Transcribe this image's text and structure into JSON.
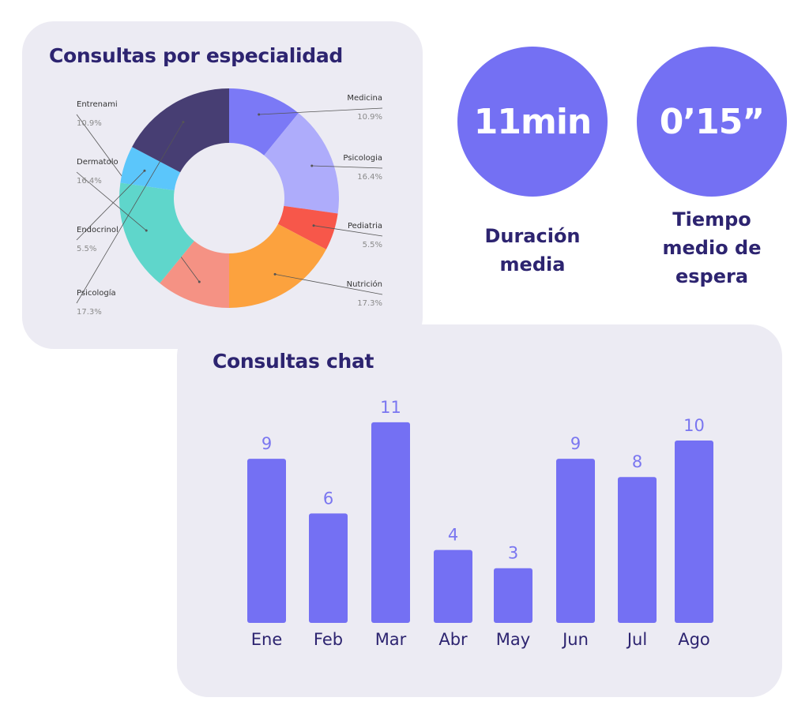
{
  "donut": {
    "title": "Consultas por especialidad"
  },
  "stats": [
    {
      "value": "11min",
      "label": "Duración\nmedia",
      "color": "#7470f3"
    },
    {
      "value": "0’15”",
      "label": "Tiempo\nmedio de\nespera",
      "color": "#7470f3"
    }
  ],
  "bars": {
    "title": "Consultas chat"
  },
  "chart_data": [
    {
      "type": "pie",
      "variant": "donut",
      "title": "Consultas por especialidad",
      "slices": [
        {
          "label": "Medicina",
          "value": 10.9,
          "display": "10.9%",
          "color": "#7b79f6"
        },
        {
          "label": "Psicologia",
          "value": 16.4,
          "display": "16.4%",
          "color": "#aeacfb"
        },
        {
          "label": "Pediatria",
          "value": 5.5,
          "display": "5.5%",
          "color": "#f7574a"
        },
        {
          "label": "Nutrición",
          "value": 17.3,
          "display": "17.3%",
          "color": "#fca23e"
        },
        {
          "label": "Entrenami",
          "value": 10.9,
          "display": "10.9%",
          "color": "#f59284"
        },
        {
          "label": "Dermatolo",
          "value": 16.4,
          "display": "16.4%",
          "color": "#5fd6cb"
        },
        {
          "label": "Endocrinol",
          "value": 5.5,
          "display": "5.5%",
          "color": "#5bc6fb"
        },
        {
          "label": "Psicología",
          "value": 17.3,
          "display": "17.3%",
          "color": "#473e73"
        }
      ],
      "legend": "labels-outside"
    },
    {
      "type": "bar",
      "title": "Consultas chat",
      "categories": [
        "Ene",
        "Feb",
        "Mar",
        "Abr",
        "May",
        "Jun",
        "Jul",
        "Ago"
      ],
      "values": [
        9,
        6,
        11,
        4,
        3,
        9,
        8,
        10
      ],
      "ylim": [
        0,
        11
      ],
      "grid": false,
      "bar_color": "#7470f3",
      "value_label_color": "#7a76f0"
    }
  ]
}
